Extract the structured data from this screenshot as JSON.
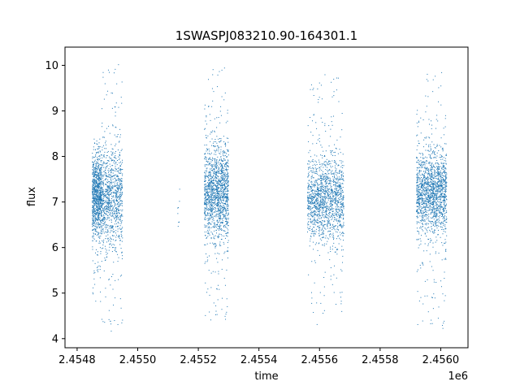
{
  "chart_data": {
    "type": "scatter",
    "title": "1SWASPJ083210.90-164301.1",
    "xlabel": "time",
    "ylabel": "flux",
    "x_offset_label": "1e6",
    "xlim": [
      2.45476,
      2.45609
    ],
    "ylim": [
      3.8,
      10.4
    ],
    "grid": false,
    "legend": "none",
    "x_ticks": [
      2.4548,
      2.455,
      2.4552,
      2.4554,
      2.4556,
      2.4558,
      2.456
    ],
    "x_tick_labels": [
      "2.4548",
      "2.4550",
      "2.4552",
      "2.4554",
      "2.4556",
      "2.4558",
      "2.4560"
    ],
    "y_ticks": [
      4,
      5,
      6,
      7,
      8,
      9,
      10
    ],
    "y_tick_labels": [
      "4",
      "5",
      "6",
      "7",
      "8",
      "9",
      "10"
    ],
    "marker_color": "#1f77b4",
    "series": [
      {
        "x_range": [
          2.45485,
          2.45488
        ],
        "center": 7.15,
        "spread": 0.45,
        "low": 4.8,
        "high": 8.4,
        "count": 900
      },
      {
        "x_range": [
          2.45488,
          2.45495
        ],
        "center": 7.1,
        "spread": 0.55,
        "low": 4.1,
        "high": 10.1,
        "count": 1000
      },
      {
        "x_range": [
          2.45513,
          2.45514
        ],
        "center": 6.9,
        "spread": 0.4,
        "low": 6.0,
        "high": 7.3,
        "count": 8
      },
      {
        "x_range": [
          2.45522,
          2.4553
        ],
        "center": 7.2,
        "spread": 0.5,
        "low": 4.4,
        "high": 10.0,
        "count": 1500
      },
      {
        "x_range": [
          2.45556,
          2.45568
        ],
        "center": 7.05,
        "spread": 0.45,
        "low": 4.3,
        "high": 9.8,
        "count": 1500
      },
      {
        "x_range": [
          2.45592,
          2.45602
        ],
        "center": 7.2,
        "spread": 0.45,
        "low": 4.2,
        "high": 9.9,
        "count": 1600
      }
    ]
  }
}
